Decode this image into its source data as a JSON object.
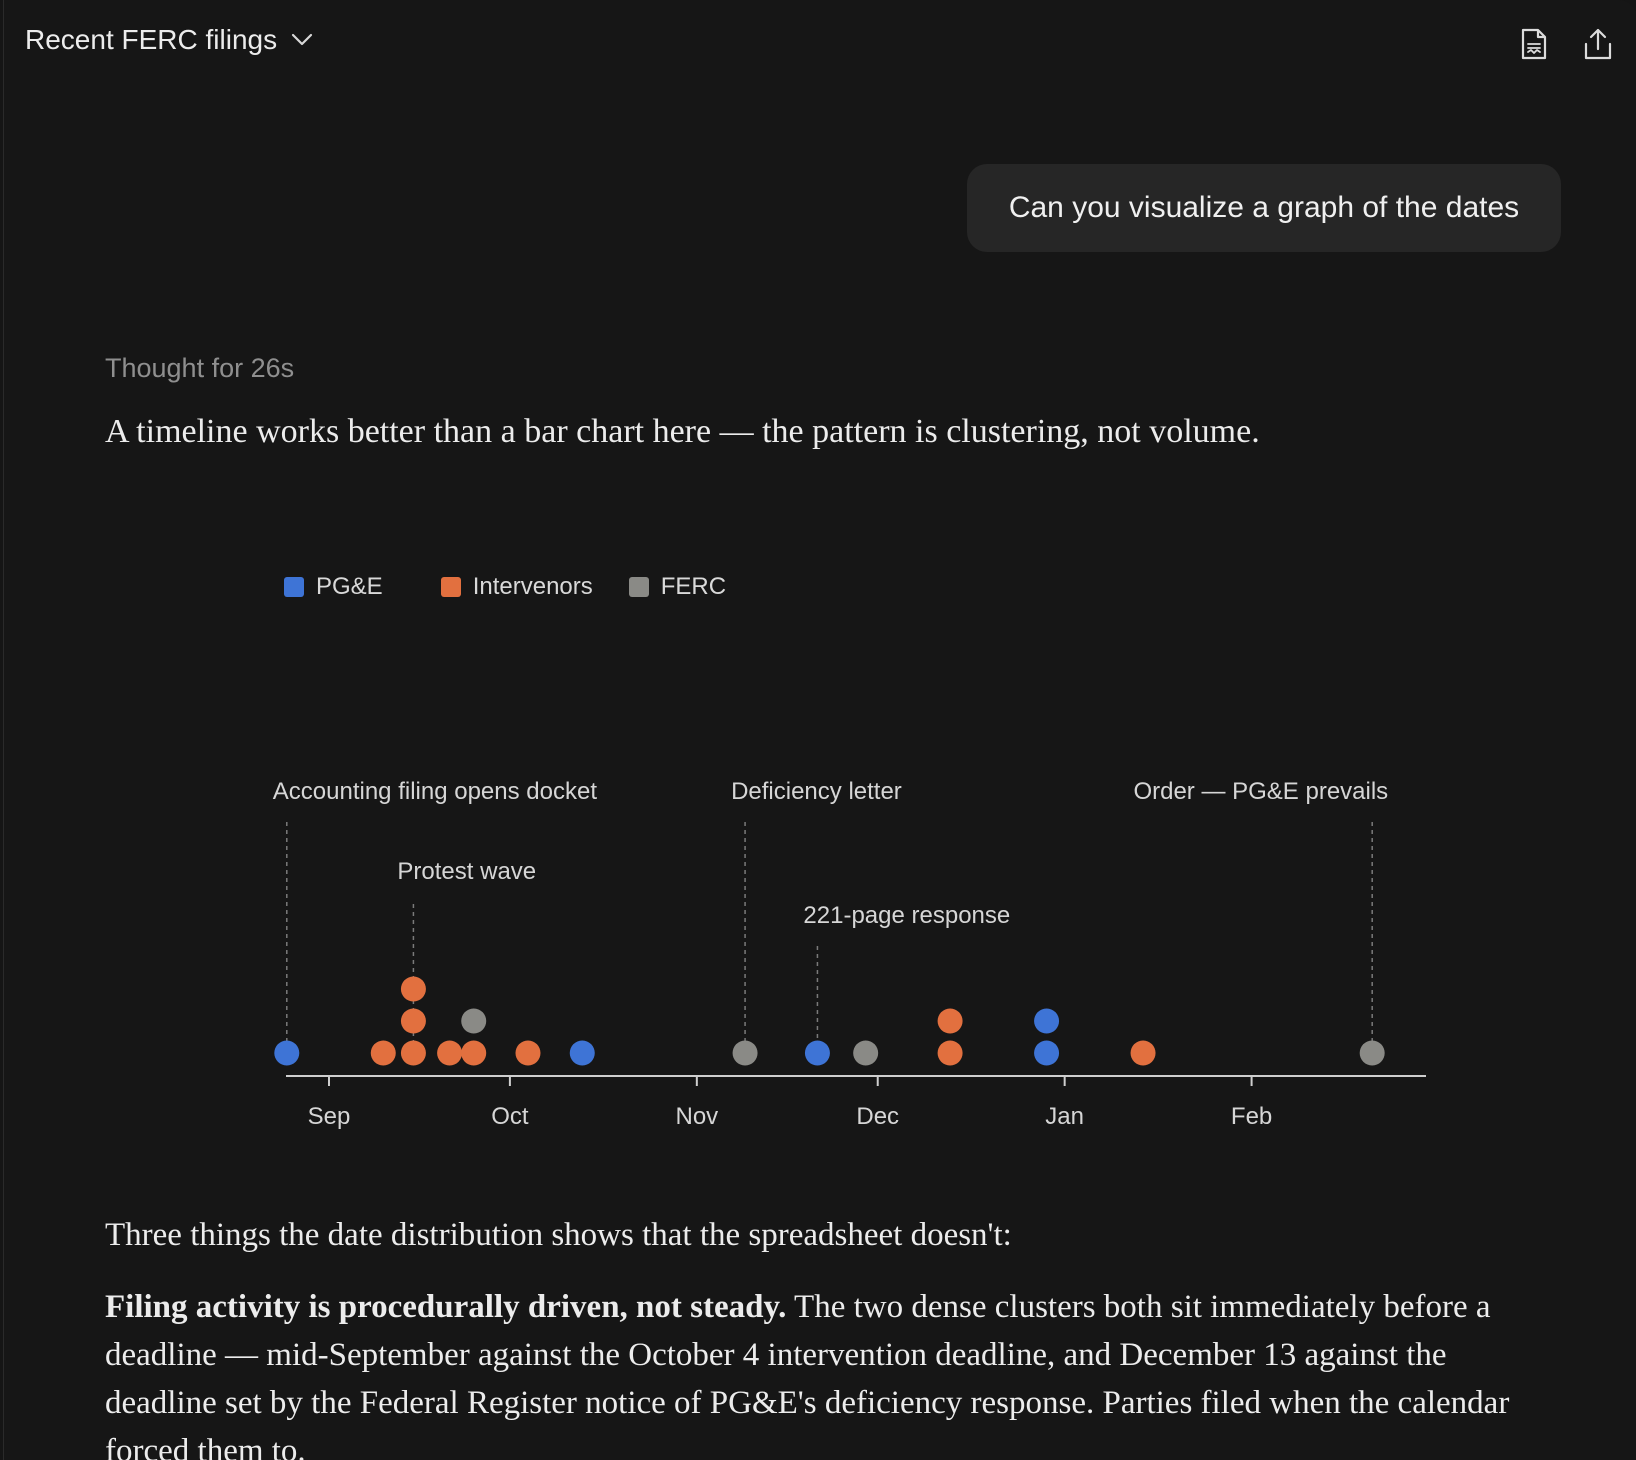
{
  "header": {
    "title": "Recent FERC filings"
  },
  "user_message": "Can you visualize a graph of the dates",
  "assistant": {
    "thought": "Thought for 26s",
    "intro": "A timeline works better than a bar chart here — the pattern is clustering, not volume.",
    "para1": "Three things the date distribution shows that the spreadsheet doesn't:",
    "para2_bold": "Filing activity is procedurally driven, not steady.",
    "para2_rest": " The two dense clusters both sit immediately before a deadline — mid-September against the October 4 intervention deadline, and December 13 against the deadline set by the Federal Register notice of PG&E's deficiency response. Parties filed when the calendar forced them to."
  },
  "colors": {
    "PG&E": "#3e74d6",
    "Intervenors": "#e2703f",
    "FERC": "#8a8a86"
  },
  "chart_data": {
    "type": "scatter",
    "legend": [
      "PG&E",
      "Intervenors",
      "FERC"
    ],
    "legend_position": "top-left",
    "x_ticks": [
      {
        "label": "Sep",
        "date": "2024-09-01"
      },
      {
        "label": "Oct",
        "date": "2024-10-01"
      },
      {
        "label": "Nov",
        "date": "2024-11-01"
      },
      {
        "label": "Dec",
        "date": "2024-12-01"
      },
      {
        "label": "Jan",
        "date": "2025-01-01"
      },
      {
        "label": "Feb",
        "date": "2025-02-01"
      }
    ],
    "x_range": [
      "2024-08-25",
      "2025-03-01"
    ],
    "points": [
      {
        "date": "2024-08-25",
        "series": "PG&E",
        "stack": 0
      },
      {
        "date": "2024-09-10",
        "series": "Intervenors",
        "stack": 0
      },
      {
        "date": "2024-09-15",
        "series": "Intervenors",
        "stack": 0
      },
      {
        "date": "2024-09-15",
        "series": "Intervenors",
        "stack": 1
      },
      {
        "date": "2024-09-15",
        "series": "Intervenors",
        "stack": 2
      },
      {
        "date": "2024-09-21",
        "series": "Intervenors",
        "stack": 0
      },
      {
        "date": "2024-09-25",
        "series": "Intervenors",
        "stack": 0
      },
      {
        "date": "2024-09-25",
        "series": "FERC",
        "stack": 1
      },
      {
        "date": "2024-10-04",
        "series": "Intervenors",
        "stack": 0
      },
      {
        "date": "2024-10-13",
        "series": "PG&E",
        "stack": 0
      },
      {
        "date": "2024-11-09",
        "series": "FERC",
        "stack": 0
      },
      {
        "date": "2024-11-21",
        "series": "PG&E",
        "stack": 0
      },
      {
        "date": "2024-11-29",
        "series": "FERC",
        "stack": 0
      },
      {
        "date": "2024-12-13",
        "series": "Intervenors",
        "stack": 0
      },
      {
        "date": "2024-12-13",
        "series": "Intervenors",
        "stack": 1
      },
      {
        "date": "2024-12-29",
        "series": "PG&E",
        "stack": 0
      },
      {
        "date": "2024-12-29",
        "series": "PG&E",
        "stack": 1
      },
      {
        "date": "2025-01-14",
        "series": "Intervenors",
        "stack": 0
      },
      {
        "date": "2025-02-21",
        "series": "FERC",
        "stack": 0
      }
    ],
    "annotations": [
      {
        "label": "Accounting filing opens docket",
        "date": "2024-08-25",
        "level": "high"
      },
      {
        "label": "Protest wave",
        "date": "2024-09-15",
        "level": "mid"
      },
      {
        "label": "Deficiency letter",
        "date": "2024-11-09",
        "level": "high"
      },
      {
        "label": "221-page response",
        "date": "2024-11-21",
        "level": "low"
      },
      {
        "label": "Order — PG&E prevails",
        "date": "2025-02-21",
        "level": "high"
      }
    ]
  }
}
